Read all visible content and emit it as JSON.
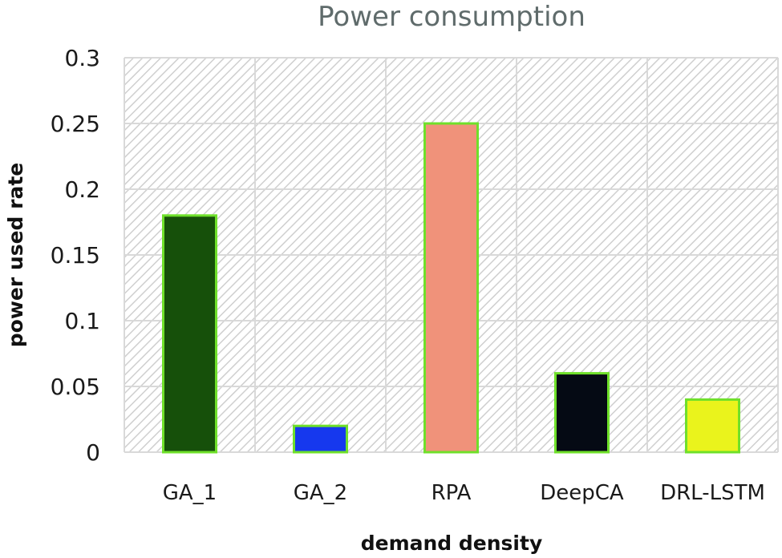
{
  "chart_data": {
    "type": "bar",
    "title": "Power consumption",
    "xlabel": "demand density",
    "ylabel": "power used rate",
    "categories": [
      "GA_1",
      "GA_2",
      "RPA",
      "DeepCA",
      "DRL-LSTM"
    ],
    "values": [
      0.18,
      0.02,
      0.25,
      0.06,
      0.04
    ],
    "bar_colors": [
      "#16500a",
      "#1638ee",
      "#f0927a",
      "#050a14",
      "#eaf31c"
    ],
    "bar_edge_color": "#6fe02a",
    "ylim": [
      0,
      0.3
    ],
    "yticks": [
      0,
      0.05,
      0.1,
      0.15,
      0.2,
      0.25,
      0.3
    ],
    "ytick_labels": [
      "0",
      "0.05",
      "0.1",
      "0.15",
      "0.2",
      "0.25",
      "0.3"
    ],
    "grid": true,
    "background": "hatched",
    "legend": "none"
  }
}
